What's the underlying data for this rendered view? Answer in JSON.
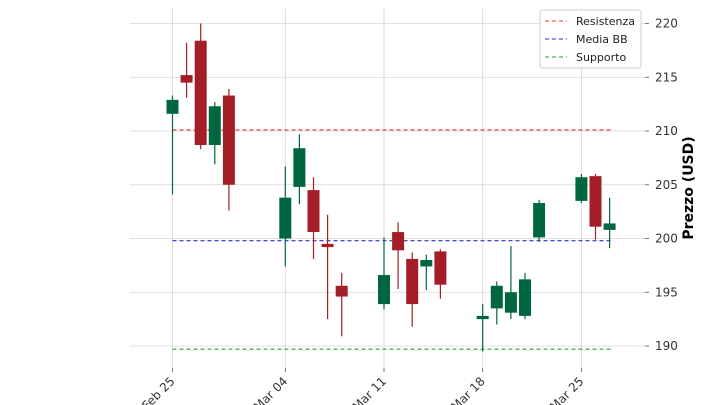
{
  "chart_data": {
    "type": "candlestick",
    "title": "",
    "xlabel": "",
    "ylabel": "Prezzo (USD)",
    "y_axis_side": "right",
    "ylim": [
      188,
      221.5
    ],
    "y_ticks": [
      190,
      195,
      200,
      205,
      210,
      215,
      220
    ],
    "x_ticks": [
      {
        "date": "2024-02-25",
        "label": "Feb 25"
      },
      {
        "date": "2024-03-04",
        "label": "Mar 04"
      },
      {
        "date": "2024-03-11",
        "label": "Mar 11"
      },
      {
        "date": "2024-03-18",
        "label": "Mar 18"
      },
      {
        "date": "2024-03-25",
        "label": "Mar 25"
      }
    ],
    "grid": true,
    "legend_position": "top-right",
    "colors": {
      "up": "#00663f",
      "down": "#a31e26"
    },
    "candles": [
      {
        "date": "2024-02-25",
        "open": 211.6,
        "high": 213.3,
        "low": 204.1,
        "close": 212.9
      },
      {
        "date": "2024-02-26",
        "open": 215.2,
        "high": 218.2,
        "low": 213.1,
        "close": 214.5
      },
      {
        "date": "2024-02-27",
        "open": 218.4,
        "high": 220.0,
        "low": 208.3,
        "close": 208.7
      },
      {
        "date": "2024-02-28",
        "open": 208.7,
        "high": 212.7,
        "low": 206.9,
        "close": 212.3
      },
      {
        "date": "2024-02-29",
        "open": 213.3,
        "high": 213.9,
        "low": 202.6,
        "close": 205.0
      },
      {
        "date": "2024-03-04",
        "open": 200.0,
        "high": 206.7,
        "low": 197.4,
        "close": 203.8
      },
      {
        "date": "2024-03-05",
        "open": 204.8,
        "high": 209.7,
        "low": 203.2,
        "close": 208.4
      },
      {
        "date": "2024-03-06",
        "open": 204.5,
        "high": 205.7,
        "low": 198.1,
        "close": 200.6
      },
      {
        "date": "2024-03-07",
        "open": 199.5,
        "high": 202.2,
        "low": 192.5,
        "close": 199.2
      },
      {
        "date": "2024-03-08",
        "open": 195.6,
        "high": 196.8,
        "low": 190.9,
        "close": 194.6
      },
      {
        "date": "2024-03-11",
        "open": 193.9,
        "high": 200.1,
        "low": 193.4,
        "close": 196.6
      },
      {
        "date": "2024-03-12",
        "open": 200.6,
        "high": 201.5,
        "low": 195.3,
        "close": 198.9
      },
      {
        "date": "2024-03-13",
        "open": 198.1,
        "high": 198.7,
        "low": 191.8,
        "close": 193.9
      },
      {
        "date": "2024-03-14",
        "open": 197.4,
        "high": 198.5,
        "low": 195.2,
        "close": 198.0
      },
      {
        "date": "2024-03-15",
        "open": 198.8,
        "high": 199.0,
        "low": 194.4,
        "close": 195.7
      },
      {
        "date": "2024-03-18",
        "open": 192.5,
        "high": 193.9,
        "low": 189.5,
        "close": 192.8
      },
      {
        "date": "2024-03-19",
        "open": 193.5,
        "high": 196.0,
        "low": 192.0,
        "close": 195.6
      },
      {
        "date": "2024-03-20",
        "open": 193.1,
        "high": 199.3,
        "low": 192.5,
        "close": 195.0
      },
      {
        "date": "2024-03-21",
        "open": 192.8,
        "high": 196.8,
        "low": 192.5,
        "close": 196.2
      },
      {
        "date": "2024-03-22",
        "open": 200.1,
        "high": 203.6,
        "low": 199.7,
        "close": 203.3
      },
      {
        "date": "2024-03-25",
        "open": 203.5,
        "high": 206.0,
        "low": 203.3,
        "close": 205.7
      },
      {
        "date": "2024-03-26",
        "open": 205.8,
        "high": 206.0,
        "low": 199.9,
        "close": 201.1
      },
      {
        "date": "2024-03-27",
        "open": 200.8,
        "high": 203.8,
        "low": 199.1,
        "close": 201.4
      }
    ],
    "lines": [
      {
        "name": "Resistenza",
        "value": 210.1,
        "color": "#e8302a"
      },
      {
        "name": "Media BB",
        "value": 199.8,
        "color": "#2b2be0"
      },
      {
        "name": "Supporto",
        "value": 189.7,
        "color": "#2e9a2e"
      }
    ]
  }
}
